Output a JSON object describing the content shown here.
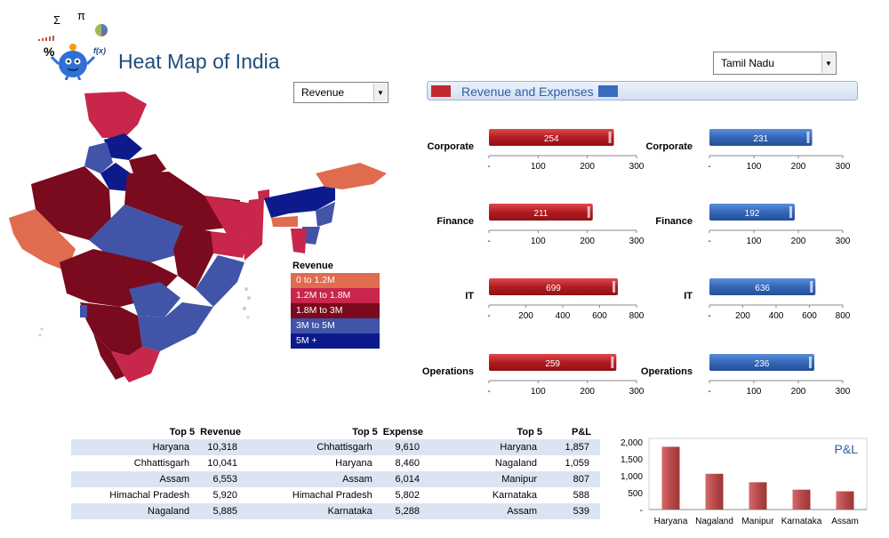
{
  "title": "Heat Map of India",
  "metric_dropdown": {
    "value": "Revenue"
  },
  "state_dropdown": {
    "value": "Tamil Nadu"
  },
  "banner": {
    "label": "Revenue and Expenses",
    "revenue_color": "#c0282d",
    "expense_color": "#3a6bc0"
  },
  "legend": {
    "title": "Revenue",
    "items": [
      {
        "label": "0 to 1.2M",
        "color": "#e06c4f"
      },
      {
        "label": "1.2M to 1.8M",
        "color": "#c8264a"
      },
      {
        "label": "1.8M to 3M",
        "color": "#7a0a1e"
      },
      {
        "label": "3M to 5M",
        "color": "#4154a8"
      },
      {
        "label": "5M +",
        "color": "#0d1a8c"
      }
    ]
  },
  "chart_data": [
    {
      "type": "bar",
      "category": "Corporate",
      "series": "Revenue",
      "values": [
        254
      ],
      "xlim": [
        0,
        300
      ],
      "ticks": [
        "-",
        "100",
        "200",
        "300"
      ]
    },
    {
      "type": "bar",
      "category": "Corporate",
      "series": "Expenses",
      "values": [
        231
      ],
      "xlim": [
        0,
        300
      ],
      "ticks": [
        "-",
        "100",
        "200",
        "300"
      ]
    },
    {
      "type": "bar",
      "category": "Finance",
      "series": "Revenue",
      "values": [
        211
      ],
      "xlim": [
        0,
        300
      ],
      "ticks": [
        "-",
        "100",
        "200",
        "300"
      ]
    },
    {
      "type": "bar",
      "category": "Finance",
      "series": "Expenses",
      "values": [
        192
      ],
      "xlim": [
        0,
        300
      ],
      "ticks": [
        "-",
        "100",
        "200",
        "300"
      ]
    },
    {
      "type": "bar",
      "category": "IT",
      "series": "Revenue",
      "values": [
        699
      ],
      "xlim": [
        0,
        800
      ],
      "ticks": [
        "-",
        "200",
        "400",
        "600",
        "800"
      ]
    },
    {
      "type": "bar",
      "category": "IT",
      "series": "Expenses",
      "values": [
        636
      ],
      "xlim": [
        0,
        800
      ],
      "ticks": [
        "-",
        "200",
        "400",
        "600",
        "800"
      ]
    },
    {
      "type": "bar",
      "category": "Operations",
      "series": "Revenue",
      "values": [
        259
      ],
      "xlim": [
        0,
        300
      ],
      "ticks": [
        "-",
        "100",
        "200",
        "300"
      ]
    },
    {
      "type": "bar",
      "category": "Operations",
      "series": "Expenses",
      "values": [
        236
      ],
      "xlim": [
        0,
        300
      ],
      "ticks": [
        "-",
        "100",
        "200",
        "300"
      ]
    },
    {
      "type": "bar",
      "title": "P&L",
      "categories": [
        "Haryana",
        "Nagaland",
        "Manipur",
        "Karnataka",
        "Assam"
      ],
      "values": [
        1857,
        1059,
        807,
        588,
        539
      ],
      "ylim": [
        0,
        2000
      ],
      "yticks": [
        "-",
        "500",
        "1,000",
        "1,500",
        "2,000"
      ]
    }
  ],
  "tables": {
    "revenue": {
      "head": [
        "Top 5",
        "Revenue"
      ],
      "rows": [
        [
          "Haryana",
          "10,318"
        ],
        [
          "Chhattisgarh",
          "10,041"
        ],
        [
          "Assam",
          "6,553"
        ],
        [
          "Himachal Pradesh",
          "5,920"
        ],
        [
          "Nagaland",
          "5,885"
        ]
      ]
    },
    "expense": {
      "head": [
        "Top 5",
        "Expense"
      ],
      "rows": [
        [
          "Chhattisgarh",
          "9,610"
        ],
        [
          "Haryana",
          "8,460"
        ],
        [
          "Assam",
          "6,014"
        ],
        [
          "Himachal Pradesh",
          "5,802"
        ],
        [
          "Karnataka",
          "5,288"
        ]
      ]
    },
    "pnl": {
      "head": [
        "Top 5",
        "P&L"
      ],
      "rows": [
        [
          "Haryana",
          "1,857"
        ],
        [
          "Nagaland",
          "1,059"
        ],
        [
          "Manipur",
          "807"
        ],
        [
          "Karnataka",
          "588"
        ],
        [
          "Assam",
          "539"
        ]
      ]
    }
  },
  "logo_symbols": [
    "Σ",
    "π",
    "%",
    "f(x)"
  ]
}
